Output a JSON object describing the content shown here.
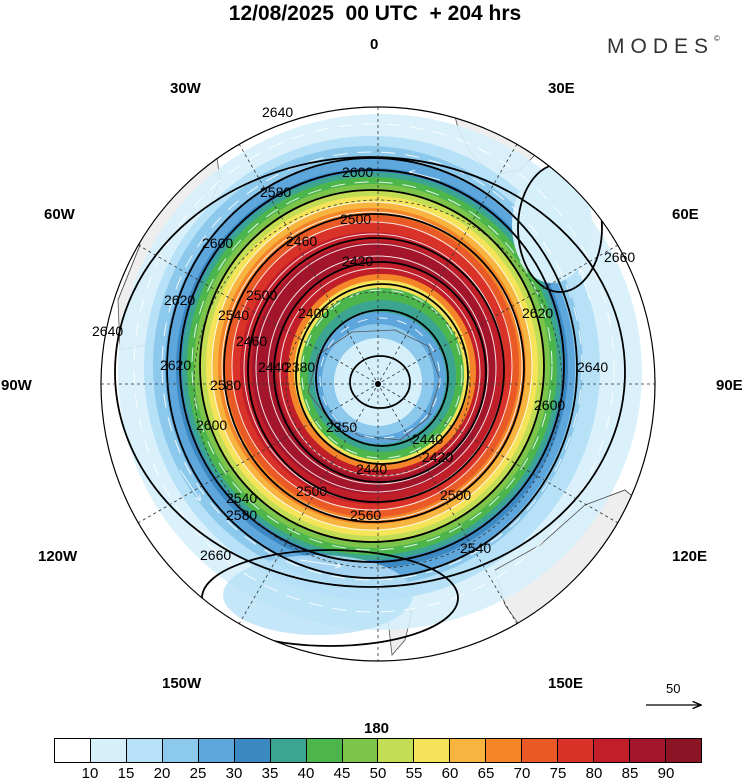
{
  "header": {
    "title": "12/08/2025  00 UTC  + 204 hrs",
    "brand": "MODES",
    "brand_mark": "©"
  },
  "map": {
    "projection": "south-polar-stereographic",
    "longitude_labels": {
      "top": "0",
      "upper_right_30": "30E",
      "right_60": "60E",
      "right_90": "90E",
      "lower_right_120": "120E",
      "lower_right_150": "150E",
      "bottom": "180",
      "lower_left_150": "150W",
      "lower_left_120": "120W",
      "left_90": "90W",
      "left_60": "60W",
      "upper_left_30": "30W"
    },
    "contour_labels": [
      "2640",
      "2600",
      "2580",
      "2500",
      "2460",
      "2420",
      "2600",
      "2540",
      "2500",
      "2400",
      "2460",
      "2380",
      "2440",
      "2620",
      "2640",
      "2620",
      "2600",
      "2580",
      "2350",
      "2420",
      "2440",
      "2500",
      "2560",
      "2580",
      "2540",
      "2540",
      "2660",
      "2660",
      "2640",
      "2500",
      "2440",
      "2620",
      "2600"
    ],
    "reference_vector": "50",
    "colors": {
      "land": "#eeeeee",
      "coast": "#555555",
      "contour": "#000000",
      "streamline": "#ffffff"
    }
  },
  "colorbar": {
    "colors": [
      "#ffffff",
      "#d6f0fb",
      "#b6e1f7",
      "#8dc9ec",
      "#5ea7dc",
      "#3b88c2",
      "#3ba592",
      "#4cb54c",
      "#7cc44a",
      "#c3dd54",
      "#f5e45a",
      "#f7b43e",
      "#f48629",
      "#ea5a27",
      "#d93228",
      "#c01f2a",
      "#a3152a",
      "#8b1525"
    ],
    "ticks": [
      "10",
      "15",
      "20",
      "25",
      "30",
      "35",
      "40",
      "45",
      "50",
      "55",
      "60",
      "65",
      "70",
      "75",
      "80",
      "85",
      "90"
    ]
  }
}
